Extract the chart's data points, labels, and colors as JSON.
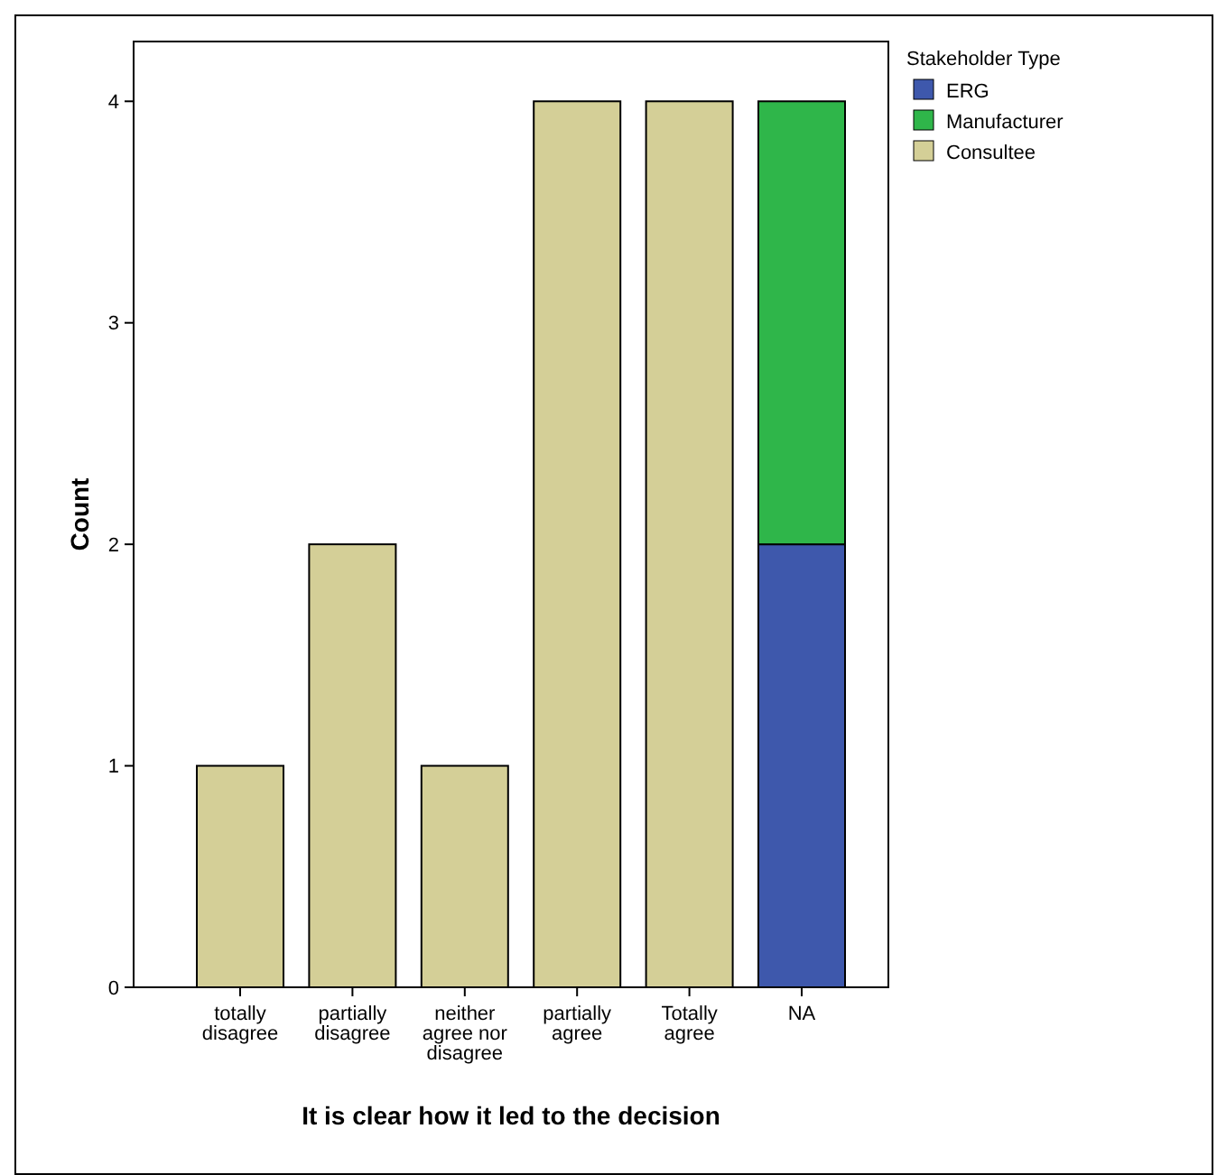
{
  "chart_data": {
    "type": "bar",
    "stacked": true,
    "xlabel": "It is clear how it led to the decision",
    "ylabel": "Count",
    "legend_title": "Stakeholder Type",
    "legend": "top right",
    "categories": [
      "totally disagree",
      "partially disagree",
      "neither agree nor disagree",
      "partially agree",
      "Totally agree",
      "NA"
    ],
    "series": [
      {
        "name": "ERG",
        "color": "#3e58ac",
        "values": [
          0,
          0,
          0,
          0,
          0,
          2
        ]
      },
      {
        "name": "Manufacturer",
        "color": "#2fb64a",
        "values": [
          0,
          0,
          0,
          0,
          0,
          2
        ]
      },
      {
        "name": "Consultee",
        "color": "#d4cf97",
        "values": [
          1,
          2,
          1,
          4,
          4,
          0
        ]
      }
    ],
    "ylim": [
      0,
      4.27
    ],
    "yticks": [
      0,
      1,
      2,
      3,
      4
    ],
    "grid": false
  }
}
